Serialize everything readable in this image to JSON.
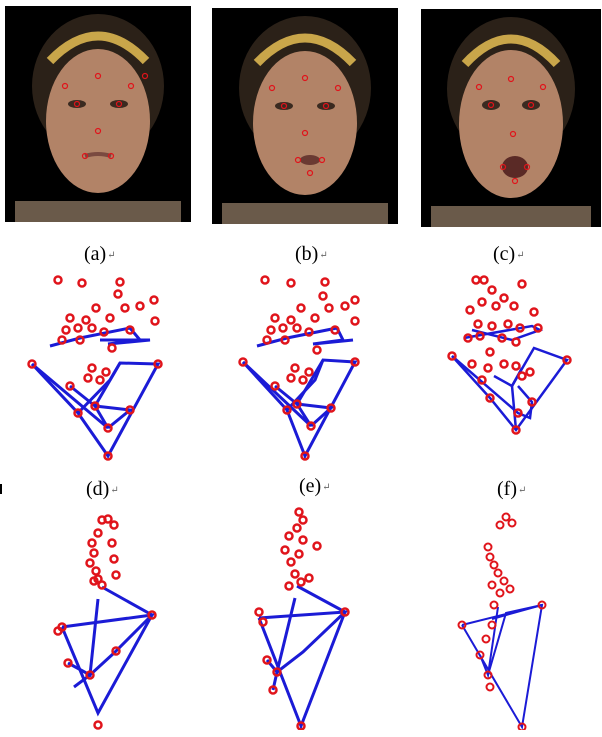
{
  "figure": {
    "panels": [
      {
        "id": "a",
        "caption": "(a)"
      },
      {
        "id": "b",
        "caption": "(b)"
      },
      {
        "id": "c",
        "caption": "(c)"
      },
      {
        "id": "d",
        "caption": "(d)"
      },
      {
        "id": "e",
        "caption": "(e)"
      },
      {
        "id": "f",
        "caption": "(f)"
      }
    ],
    "return_mark": "↵"
  },
  "colors": {
    "marker": "#e0141b",
    "line": "#1b1bd6",
    "headband": "#c9a64a",
    "skin": "#b28367",
    "hair": "#2b2118",
    "background": "#000000"
  }
}
